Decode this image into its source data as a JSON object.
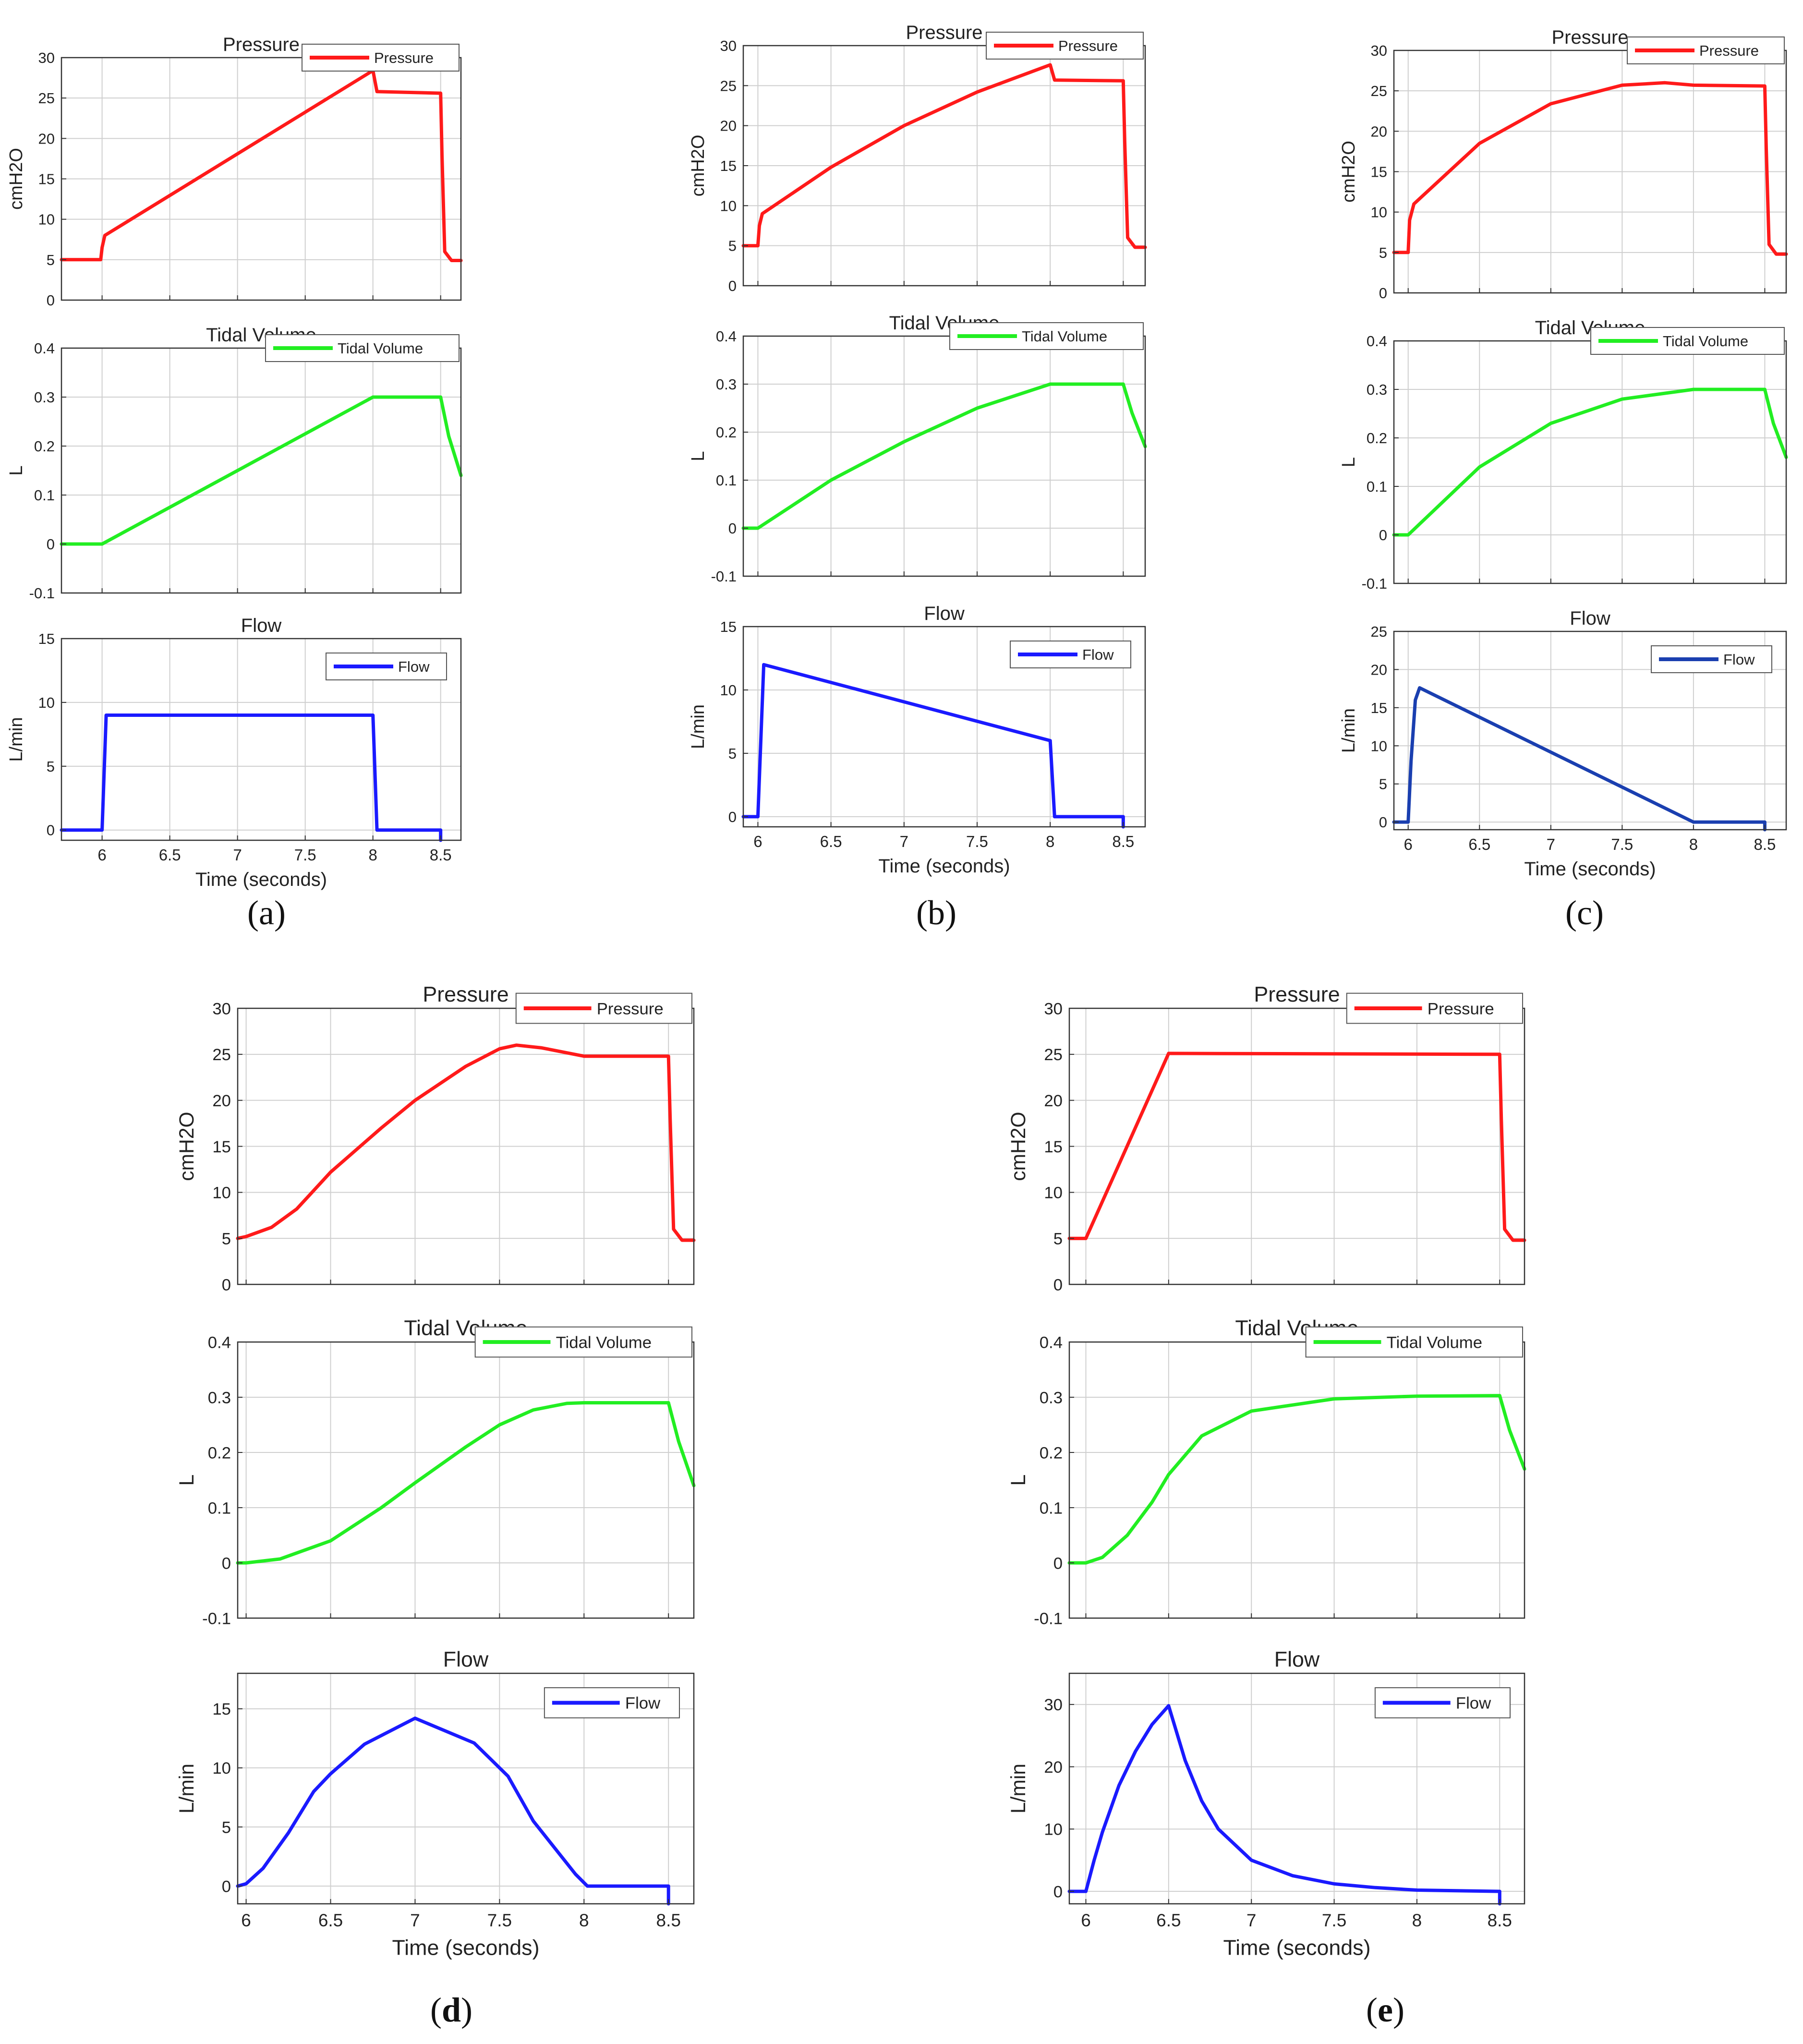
{
  "figure": {
    "panels": [
      {
        "id": "a",
        "label": "(a)",
        "bold": false
      },
      {
        "id": "b",
        "label": "(b)",
        "bold": false
      },
      {
        "id": "c",
        "label": "(c)",
        "bold": false
      },
      {
        "id": "d",
        "label": "d",
        "bold": true
      },
      {
        "id": "e",
        "label": "e",
        "bold": true
      }
    ],
    "colors": {
      "pressure": "#ff1a1a",
      "tidal_volume": "#22ee22",
      "flow": "#1a1aff",
      "flow_c": "#1a3fb0",
      "grid": "#cfcfcf"
    }
  },
  "chart_data": [
    {
      "panel": "a",
      "type": "line",
      "title": "Pressure",
      "ylabel": "cmH2O",
      "xlabel": "",
      "legend": "Pressure",
      "color": "#ff1a1a",
      "xlim": [
        5.7,
        8.65
      ],
      "ylim": [
        0,
        30
      ],
      "xticks": [
        6,
        6.5,
        7,
        7.5,
        8,
        8.5
      ],
      "yticks": [
        0,
        5,
        10,
        15,
        20,
        25,
        30
      ],
      "show_xticks": false,
      "x": [
        5.7,
        5.99,
        6.0,
        6.02,
        8.0,
        8.03,
        8.5,
        8.51,
        8.53,
        8.58,
        8.65
      ],
      "y": [
        5,
        5,
        6.5,
        8,
        28.4,
        25.8,
        25.6,
        18,
        6,
        4.9,
        4.9
      ]
    },
    {
      "panel": "a",
      "type": "line",
      "title": "Tidal Volume",
      "ylabel": "L",
      "xlabel": "",
      "legend": "Tidal Volume",
      "color": "#22ee22",
      "xlim": [
        5.7,
        8.65
      ],
      "ylim": [
        -0.1,
        0.4
      ],
      "xticks": [
        6,
        6.5,
        7,
        7.5,
        8,
        8.5
      ],
      "yticks": [
        -0.1,
        0,
        0.1,
        0.2,
        0.3,
        0.4
      ],
      "show_xticks": false,
      "x": [
        5.7,
        6.0,
        8.0,
        8.5,
        8.56,
        8.65
      ],
      "y": [
        0,
        0,
        0.3,
        0.3,
        0.22,
        0.14
      ]
    },
    {
      "panel": "a",
      "type": "line",
      "title": "Flow",
      "ylabel": "L/min",
      "xlabel": "Time (seconds)",
      "legend": "Flow",
      "color": "#1a1aff",
      "xlim": [
        5.7,
        8.65
      ],
      "ylim": [
        -0.8,
        15
      ],
      "xticks": [
        6,
        6.5,
        7,
        7.5,
        8,
        8.5
      ],
      "yticks": [
        0,
        5,
        10,
        15
      ],
      "show_xticks": true,
      "x": [
        5.7,
        6.0,
        6.03,
        8.0,
        8.03,
        8.5,
        8.5
      ],
      "y": [
        0,
        0,
        9,
        9,
        0,
        0,
        -0.8
      ]
    },
    {
      "panel": "b",
      "type": "line",
      "title": "Pressure",
      "ylabel": "cmH2O",
      "xlabel": "",
      "legend": "Pressure",
      "color": "#ff1a1a",
      "xlim": [
        5.9,
        8.65
      ],
      "ylim": [
        0,
        30
      ],
      "xticks": [
        6,
        6.5,
        7,
        7.5,
        8,
        8.5
      ],
      "yticks": [
        0,
        5,
        10,
        15,
        20,
        25,
        30
      ],
      "show_xticks": false,
      "x": [
        5.9,
        6.0,
        6.01,
        6.03,
        6.5,
        7.0,
        7.5,
        8.0,
        8.03,
        8.5,
        8.51,
        8.53,
        8.58,
        8.65
      ],
      "y": [
        5,
        5,
        7.5,
        9,
        14.8,
        20,
        24.2,
        27.6,
        25.7,
        25.6,
        18,
        6,
        4.8,
        4.8
      ]
    },
    {
      "panel": "b",
      "type": "line",
      "title": "Tidal Volume",
      "ylabel": "L",
      "xlabel": "",
      "legend": "Tidal Volume",
      "color": "#22ee22",
      "xlim": [
        5.9,
        8.65
      ],
      "ylim": [
        -0.1,
        0.4
      ],
      "xticks": [
        6,
        6.5,
        7,
        7.5,
        8,
        8.5
      ],
      "yticks": [
        -0.1,
        0,
        0.1,
        0.2,
        0.3,
        0.4
      ],
      "show_xticks": false,
      "x": [
        5.9,
        6.0,
        6.5,
        7.0,
        7.5,
        8.0,
        8.5,
        8.56,
        8.65
      ],
      "y": [
        0,
        0,
        0.1,
        0.18,
        0.25,
        0.3,
        0.3,
        0.24,
        0.17
      ]
    },
    {
      "panel": "b",
      "type": "line",
      "title": "Flow",
      "ylabel": "L/min",
      "xlabel": "Time (seconds)",
      "legend": "Flow",
      "color": "#1a1aff",
      "xlim": [
        5.9,
        8.65
      ],
      "ylim": [
        -0.8,
        15
      ],
      "xticks": [
        6,
        6.5,
        7,
        7.5,
        8,
        8.5
      ],
      "yticks": [
        0,
        5,
        10,
        15
      ],
      "show_xticks": true,
      "x": [
        5.9,
        6.0,
        6.04,
        8.0,
        8.03,
        8.5,
        8.5
      ],
      "y": [
        0,
        0,
        12,
        6,
        0,
        0,
        -0.8
      ]
    },
    {
      "panel": "c",
      "type": "line",
      "title": "Pressure",
      "ylabel": "cmH2O",
      "xlabel": "",
      "legend": "Pressure",
      "color": "#ff1a1a",
      "xlim": [
        5.9,
        8.65
      ],
      "ylim": [
        0,
        30
      ],
      "xticks": [
        6,
        6.5,
        7,
        7.5,
        8,
        8.5
      ],
      "yticks": [
        0,
        5,
        10,
        15,
        20,
        25,
        30
      ],
      "show_xticks": false,
      "x": [
        5.9,
        6.0,
        6.01,
        6.04,
        6.5,
        7.0,
        7.5,
        7.8,
        8.0,
        8.5,
        8.51,
        8.53,
        8.58,
        8.65
      ],
      "y": [
        5,
        5,
        9,
        11,
        18.5,
        23.4,
        25.7,
        26,
        25.7,
        25.6,
        18,
        6,
        4.8,
        4.8
      ]
    },
    {
      "panel": "c",
      "type": "line",
      "title": "Tidal Volume",
      "ylabel": "L",
      "xlabel": "",
      "legend": "Tidal Volume",
      "color": "#22ee22",
      "xlim": [
        5.9,
        8.65
      ],
      "ylim": [
        -0.1,
        0.4
      ],
      "xticks": [
        6,
        6.5,
        7,
        7.5,
        8,
        8.5
      ],
      "yticks": [
        -0.1,
        0,
        0.1,
        0.2,
        0.3,
        0.4
      ],
      "show_xticks": false,
      "x": [
        5.9,
        6.0,
        6.5,
        7.0,
        7.5,
        8.0,
        8.5,
        8.56,
        8.65
      ],
      "y": [
        0,
        0,
        0.14,
        0.23,
        0.28,
        0.3,
        0.3,
        0.23,
        0.16
      ]
    },
    {
      "panel": "c",
      "type": "line",
      "title": "Flow",
      "ylabel": "L/min",
      "xlabel": "Time (seconds)",
      "legend": "Flow",
      "color": "#1a3fb0",
      "xlim": [
        5.9,
        8.65
      ],
      "ylim": [
        -1,
        25
      ],
      "xticks": [
        6,
        6.5,
        7,
        7.5,
        8,
        8.5
      ],
      "yticks": [
        0,
        5,
        10,
        15,
        20,
        25
      ],
      "show_xticks": true,
      "x": [
        5.9,
        6.0,
        6.02,
        6.05,
        6.08,
        8.0,
        8.5,
        8.5
      ],
      "y": [
        0,
        0,
        8,
        16,
        17.6,
        0,
        0,
        -1
      ]
    },
    {
      "panel": "d",
      "type": "line",
      "title": "Pressure",
      "ylabel": "cmH2O",
      "xlabel": "",
      "legend": "Pressure",
      "color": "#ff1a1a",
      "xlim": [
        5.95,
        8.65
      ],
      "ylim": [
        0,
        30
      ],
      "xticks": [
        6,
        6.5,
        7,
        7.5,
        8,
        8.5
      ],
      "yticks": [
        0,
        5,
        10,
        15,
        20,
        25,
        30
      ],
      "show_xticks": false,
      "x": [
        5.95,
        6.0,
        6.15,
        6.3,
        6.5,
        6.8,
        7.0,
        7.3,
        7.5,
        7.6,
        7.75,
        8.0,
        8.5,
        8.51,
        8.53,
        8.58,
        8.65
      ],
      "y": [
        5,
        5.2,
        6.2,
        8.2,
        12.2,
        17,
        20,
        23.7,
        25.6,
        26,
        25.7,
        24.8,
        24.8,
        18,
        6,
        4.8,
        4.8
      ]
    },
    {
      "panel": "d",
      "type": "line",
      "title": "Tidal Volume",
      "ylabel": "L",
      "xlabel": "",
      "legend": "Tidal Volume",
      "color": "#22ee22",
      "xlim": [
        5.95,
        8.65
      ],
      "ylim": [
        -0.1,
        0.4
      ],
      "xticks": [
        6,
        6.5,
        7,
        7.5,
        8,
        8.5
      ],
      "yticks": [
        -0.1,
        0,
        0.1,
        0.2,
        0.3,
        0.4
      ],
      "show_xticks": false,
      "x": [
        5.95,
        6.0,
        6.2,
        6.5,
        6.8,
        7.0,
        7.3,
        7.5,
        7.7,
        7.9,
        8.0,
        8.5,
        8.56,
        8.65
      ],
      "y": [
        0,
        0,
        0.007,
        0.04,
        0.1,
        0.145,
        0.21,
        0.25,
        0.277,
        0.289,
        0.29,
        0.29,
        0.22,
        0.14
      ]
    },
    {
      "panel": "d",
      "type": "line",
      "title": "Flow",
      "ylabel": "L/min",
      "xlabel": "Time (seconds)",
      "legend": "Flow",
      "color": "#1a1aff",
      "xlim": [
        5.95,
        8.65
      ],
      "ylim": [
        -1.5,
        18
      ],
      "xticks": [
        6,
        6.5,
        7,
        7.5,
        8,
        8.5
      ],
      "yticks": [
        0,
        5,
        10,
        15
      ],
      "show_xticks": true,
      "x": [
        5.95,
        6.0,
        6.1,
        6.25,
        6.4,
        6.5,
        6.7,
        7.0,
        7.35,
        7.55,
        7.7,
        7.95,
        8.02,
        8.5,
        8.5
      ],
      "y": [
        0,
        0.2,
        1.5,
        4.5,
        8,
        9.5,
        12,
        14.2,
        12.1,
        9.3,
        5.5,
        1.0,
        0,
        0,
        -1.5
      ]
    },
    {
      "panel": "e",
      "type": "line",
      "title": "Pressure",
      "ylabel": "cmH2O",
      "xlabel": "",
      "legend": "Pressure",
      "color": "#ff1a1a",
      "xlim": [
        5.9,
        8.65
      ],
      "ylim": [
        0,
        30
      ],
      "xticks": [
        6,
        6.5,
        7,
        7.5,
        8,
        8.5
      ],
      "yticks": [
        0,
        5,
        10,
        15,
        20,
        25,
        30
      ],
      "show_xticks": false,
      "x": [
        5.9,
        6.0,
        6.5,
        8.5,
        8.51,
        8.53,
        8.58,
        8.65
      ],
      "y": [
        5,
        5,
        25.1,
        25,
        18,
        6,
        4.8,
        4.8
      ]
    },
    {
      "panel": "e",
      "type": "line",
      "title": "Tidal Volume",
      "ylabel": "L",
      "xlabel": "",
      "legend": "Tidal Volume",
      "color": "#22ee22",
      "xlim": [
        5.9,
        8.65
      ],
      "ylim": [
        -0.1,
        0.4
      ],
      "xticks": [
        6,
        6.5,
        7,
        7.5,
        8,
        8.5
      ],
      "yticks": [
        -0.1,
        0,
        0.1,
        0.2,
        0.3,
        0.4
      ],
      "show_xticks": false,
      "x": [
        5.9,
        6.0,
        6.1,
        6.25,
        6.4,
        6.5,
        6.7,
        7.0,
        7.5,
        8.0,
        8.5,
        8.56,
        8.65
      ],
      "y": [
        0,
        0,
        0.01,
        0.05,
        0.11,
        0.16,
        0.23,
        0.275,
        0.297,
        0.302,
        0.303,
        0.24,
        0.17
      ]
    },
    {
      "panel": "e",
      "type": "line",
      "title": "Flow",
      "ylabel": "L/min",
      "xlabel": "Time (seconds)",
      "legend": "Flow",
      "color": "#1a1aff",
      "xlim": [
        5.9,
        8.65
      ],
      "ylim": [
        -2,
        35
      ],
      "xticks": [
        6,
        6.5,
        7,
        7.5,
        8,
        8.5
      ],
      "yticks": [
        0,
        10,
        20,
        30
      ],
      "show_xticks": true,
      "x": [
        5.9,
        6.0,
        6.05,
        6.1,
        6.2,
        6.3,
        6.4,
        6.5,
        6.6,
        6.7,
        6.8,
        7.0,
        7.25,
        7.5,
        7.75,
        8.0,
        8.5,
        8.5
      ],
      "y": [
        0,
        0,
        5,
        9.5,
        17,
        22.5,
        26.8,
        29.8,
        21,
        14.5,
        10,
        5,
        2.5,
        1.2,
        0.6,
        0.2,
        0,
        -2
      ]
    }
  ]
}
